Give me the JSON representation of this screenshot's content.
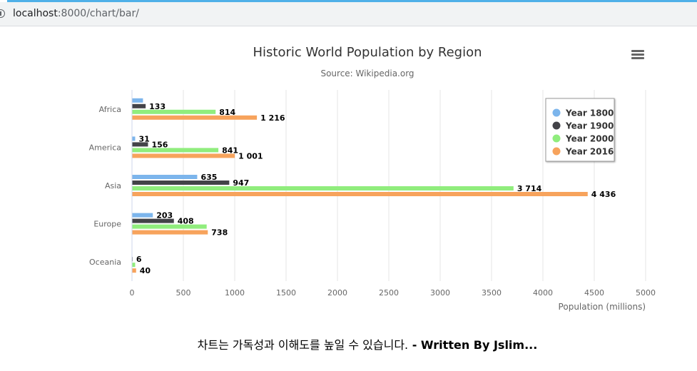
{
  "browser": {
    "url_host": "localhost",
    "url_path": ":8000/chart/bar/"
  },
  "caption": {
    "text": "차트는 가독성과 이해도를 높일 수 있습니다.",
    "author": " - Written By Jslim..."
  },
  "chart_data": {
    "type": "bar",
    "orientation": "horizontal",
    "title": "Historic World Population by Region",
    "subtitle": "Source: Wikipedia.org",
    "xlabel": "Population (millions)",
    "ylabel": "",
    "xlim": [
      0,
      5000
    ],
    "x_ticks": [
      "0",
      "500",
      "1000",
      "1500",
      "2000",
      "2500",
      "3000",
      "3500",
      "4000",
      "4500",
      "5000"
    ],
    "categories": [
      "Africa",
      "America",
      "Asia",
      "Europe",
      "Oceania"
    ],
    "series": [
      {
        "name": "Year 1800",
        "color": "#7cb5ec",
        "values": [
          107,
          31,
          635,
          203,
          2
        ],
        "labels": [
          "",
          "31",
          "635",
          "203",
          ""
        ]
      },
      {
        "name": "Year 1900",
        "color": "#434348",
        "values": [
          133,
          156,
          947,
          408,
          6
        ],
        "labels": [
          "133",
          "156",
          "947",
          "408",
          "6"
        ]
      },
      {
        "name": "Year 2000",
        "color": "#90ed7d",
        "values": [
          814,
          841,
          3714,
          727,
          31
        ],
        "labels": [
          "814",
          "841",
          "3 714",
          "",
          ""
        ]
      },
      {
        "name": "Year 2016",
        "color": "#f7a35c",
        "values": [
          1216,
          1001,
          4436,
          738,
          40
        ],
        "labels": [
          "1 216",
          "1 001",
          "4 436",
          "738",
          "40"
        ]
      }
    ],
    "grid": true,
    "legend_position": "top-right"
  }
}
